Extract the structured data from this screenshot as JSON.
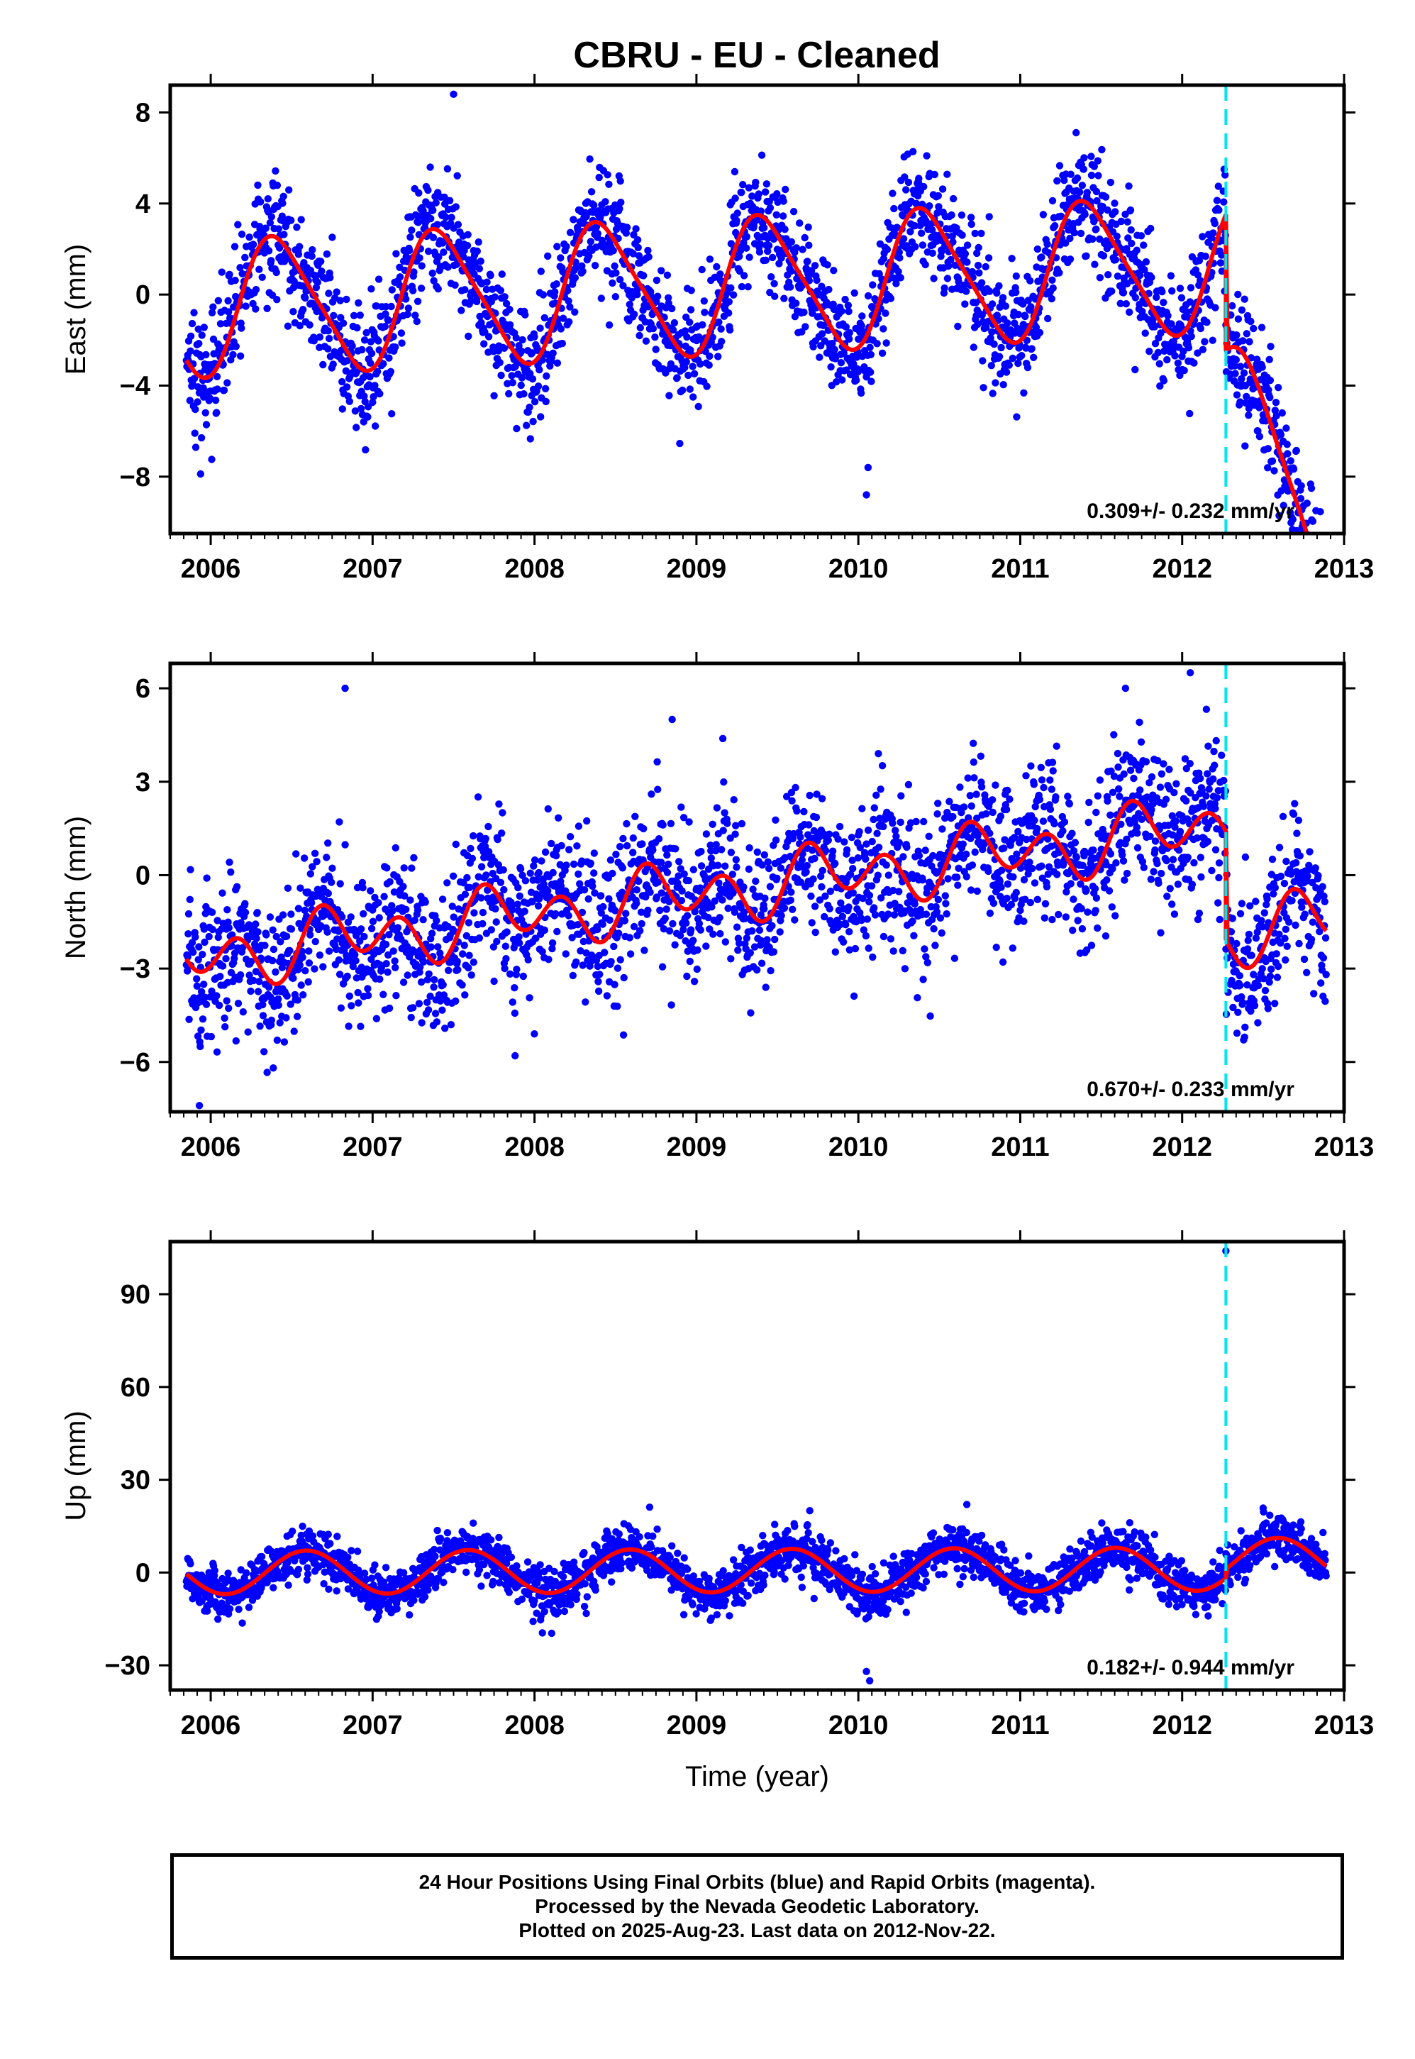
{
  "colors": {
    "data": "#0000ff",
    "fit": "#ff0000",
    "event": "#00e5ee",
    "axis": "#000000"
  },
  "chart_data": [
    {
      "type": "scatter",
      "title": "CBRU  - EU - Cleaned",
      "ylabel": "East (mm)",
      "xlabel": "",
      "xlim": [
        2005.75,
        2013.0
      ],
      "ylim": [
        -10.5,
        9.2
      ],
      "xticks": [
        2006,
        2007,
        2008,
        2009,
        2010,
        2011,
        2012,
        2013
      ],
      "yticks": [
        -8,
        -4,
        0,
        4,
        8
      ],
      "yticklabels": [
        "−8",
        "−4",
        "0",
        "4",
        "8"
      ],
      "annotation": "0.309+/- 0.232 mm/yr",
      "event_line_x": 2012.27,
      "series": [
        {
          "kind": "points",
          "x_start": 2005.85,
          "x_end": 2012.89,
          "model": {
            "offset": -0.6,
            "trend": 0.309,
            "annual_amp": 2.9,
            "annual_phase": 0.17,
            "semi_amp": 0.5,
            "noise": 1.3,
            "step_at": 2012.27,
            "step": -6.0,
            "post_trend": -9.5
          },
          "outliers": [
            [
              2007.5,
              8.8
            ],
            [
              2010.05,
              -8.8
            ],
            [
              2010.06,
              -7.6
            ],
            [
              2012.8,
              -9.9
            ]
          ]
        },
        {
          "kind": "line",
          "x_start": 2005.85,
          "x_end": 2012.89,
          "model": {
            "offset": -0.6,
            "trend": 0.309,
            "annual_amp": 2.9,
            "annual_phase": 0.17,
            "semi_amp": 0.5,
            "step_at": 2012.27,
            "step": -6.0,
            "post_trend": -9.5
          }
        }
      ]
    },
    {
      "type": "scatter",
      "title": "",
      "ylabel": "North (mm)",
      "xlabel": "",
      "xlim": [
        2005.75,
        2013.0
      ],
      "ylim": [
        -7.6,
        6.8
      ],
      "xticks": [
        2006,
        2007,
        2008,
        2009,
        2010,
        2011,
        2012,
        2013
      ],
      "yticks": [
        -6,
        -3,
        0,
        3,
        6
      ],
      "yticklabels": [
        "−6",
        "−3",
        "0",
        "3",
        "6"
      ],
      "annotation": "0.670+/- 0.233 mm/yr",
      "event_line_x": 2012.27,
      "series": [
        {
          "kind": "points",
          "x_start": 2005.85,
          "x_end": 2012.89,
          "model": {
            "offset": -2.6,
            "trend": 0.67,
            "annual_amp": 0.5,
            "annual_phase": 0.55,
            "semi_amp": 0.8,
            "noise": 1.2,
            "step_at": 2012.27,
            "step": -3.5,
            "post_trend": 0.0
          },
          "outliers": [
            [
              2005.93,
              -7.4
            ],
            [
              2006.83,
              6.0
            ],
            [
              2008.85,
              5.0
            ],
            [
              2011.65,
              6.0
            ],
            [
              2012.05,
              6.5
            ],
            [
              2007.88,
              -5.8
            ]
          ]
        },
        {
          "kind": "line",
          "x_start": 2005.85,
          "x_end": 2012.89,
          "model": {
            "offset": -2.6,
            "trend": 0.67,
            "annual_amp": 0.5,
            "annual_phase": 0.55,
            "semi_amp": 0.8,
            "step_at": 2012.27,
            "step": -3.5,
            "post_trend": 0.0
          }
        }
      ]
    },
    {
      "type": "scatter",
      "title": "",
      "ylabel": "Up (mm)",
      "xlabel": "Time (year)",
      "xlim": [
        2005.75,
        2013.0
      ],
      "ylim": [
        -38,
        107
      ],
      "xticks": [
        2006,
        2007,
        2008,
        2009,
        2010,
        2011,
        2012,
        2013
      ],
      "yticks": [
        -30,
        0,
        30,
        60,
        90
      ],
      "yticklabels": [
        "−30",
        "0",
        "30",
        "60",
        "90"
      ],
      "annotation": "0.182+/- 0.944 mm/yr",
      "event_line_x": 2012.27,
      "series": [
        {
          "kind": "points",
          "x_start": 2005.85,
          "x_end": 2012.89,
          "model": {
            "offset": 0.0,
            "trend": 0.182,
            "annual_amp": 7.0,
            "annual_phase": 0.34,
            "semi_amp": 0.0,
            "noise": 3.8,
            "step_at": 2012.27,
            "step": 3.0,
            "post_trend": 0.0
          },
          "outliers": [
            [
              2012.27,
              104
            ],
            [
              2010.05,
              -32
            ],
            [
              2010.07,
              -35
            ],
            [
              2009.7,
              20
            ],
            [
              2010.67,
              22
            ]
          ]
        },
        {
          "kind": "line",
          "x_start": 2005.85,
          "x_end": 2012.89,
          "model": {
            "offset": 0.0,
            "trend": 0.182,
            "annual_amp": 7.0,
            "annual_phase": 0.34,
            "semi_amp": 0.0,
            "step_at": 2012.27,
            "step": 3.0,
            "post_trend": 0.0
          }
        }
      ]
    }
  ],
  "footer": {
    "line1": "24 Hour Positions Using Final Orbits (blue) and Rapid Orbits (magenta).",
    "line2": "Processed by the Nevada Geodetic Laboratory.",
    "line3": "Plotted on 2025-Aug-23. Last data on 2012-Nov-22."
  }
}
